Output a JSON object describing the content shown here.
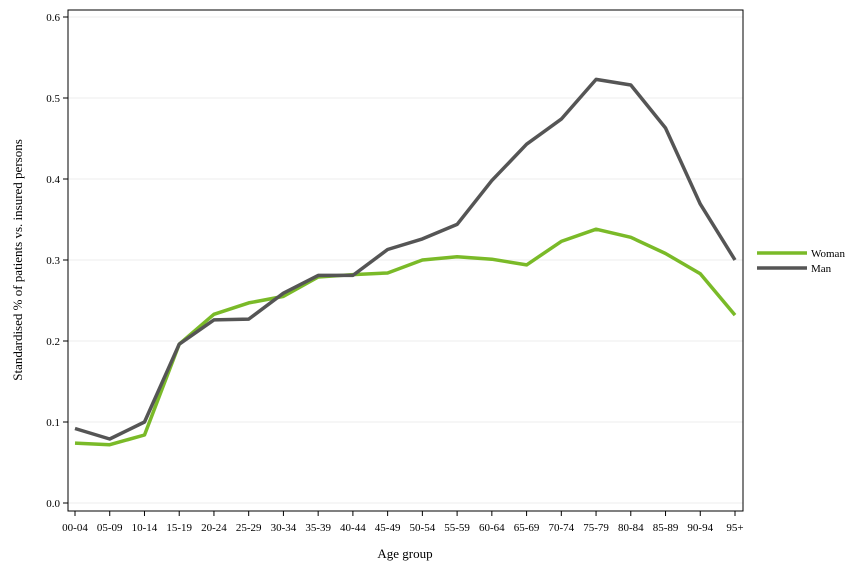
{
  "chart_data": {
    "type": "line",
    "title": "",
    "xlabel": "Age group",
    "ylabel": "Standardised % of patients vs. insured persons",
    "categories": [
      "00-04",
      "05-09",
      "10-14",
      "15-19",
      "20-24",
      "25-29",
      "30-34",
      "35-39",
      "40-44",
      "45-49",
      "50-54",
      "55-59",
      "60-64",
      "65-69",
      "70-74",
      "75-79",
      "80-84",
      "85-89",
      "90-94",
      "95+"
    ],
    "ylim": [
      0,
      0.6
    ],
    "yticks": [
      "0.0",
      "0.1",
      "0.2",
      "0.3",
      "0.4",
      "0.5",
      "0.6"
    ],
    "grid": true,
    "legend_position": "right",
    "series": [
      {
        "name": "Woman",
        "color": "#7aba28",
        "values": [
          0.074,
          0.072,
          0.084,
          0.196,
          0.233,
          0.247,
          0.255,
          0.279,
          0.282,
          0.284,
          0.3,
          0.304,
          0.301,
          0.294,
          0.323,
          0.338,
          0.328,
          0.308,
          0.283,
          0.232
        ]
      },
      {
        "name": "Man",
        "color": "#555555",
        "values": [
          0.092,
          0.079,
          0.1,
          0.196,
          0.226,
          0.227,
          0.259,
          0.281,
          0.281,
          0.313,
          0.326,
          0.344,
          0.398,
          0.443,
          0.474,
          0.523,
          0.516,
          0.463,
          0.369,
          0.3
        ]
      }
    ]
  }
}
